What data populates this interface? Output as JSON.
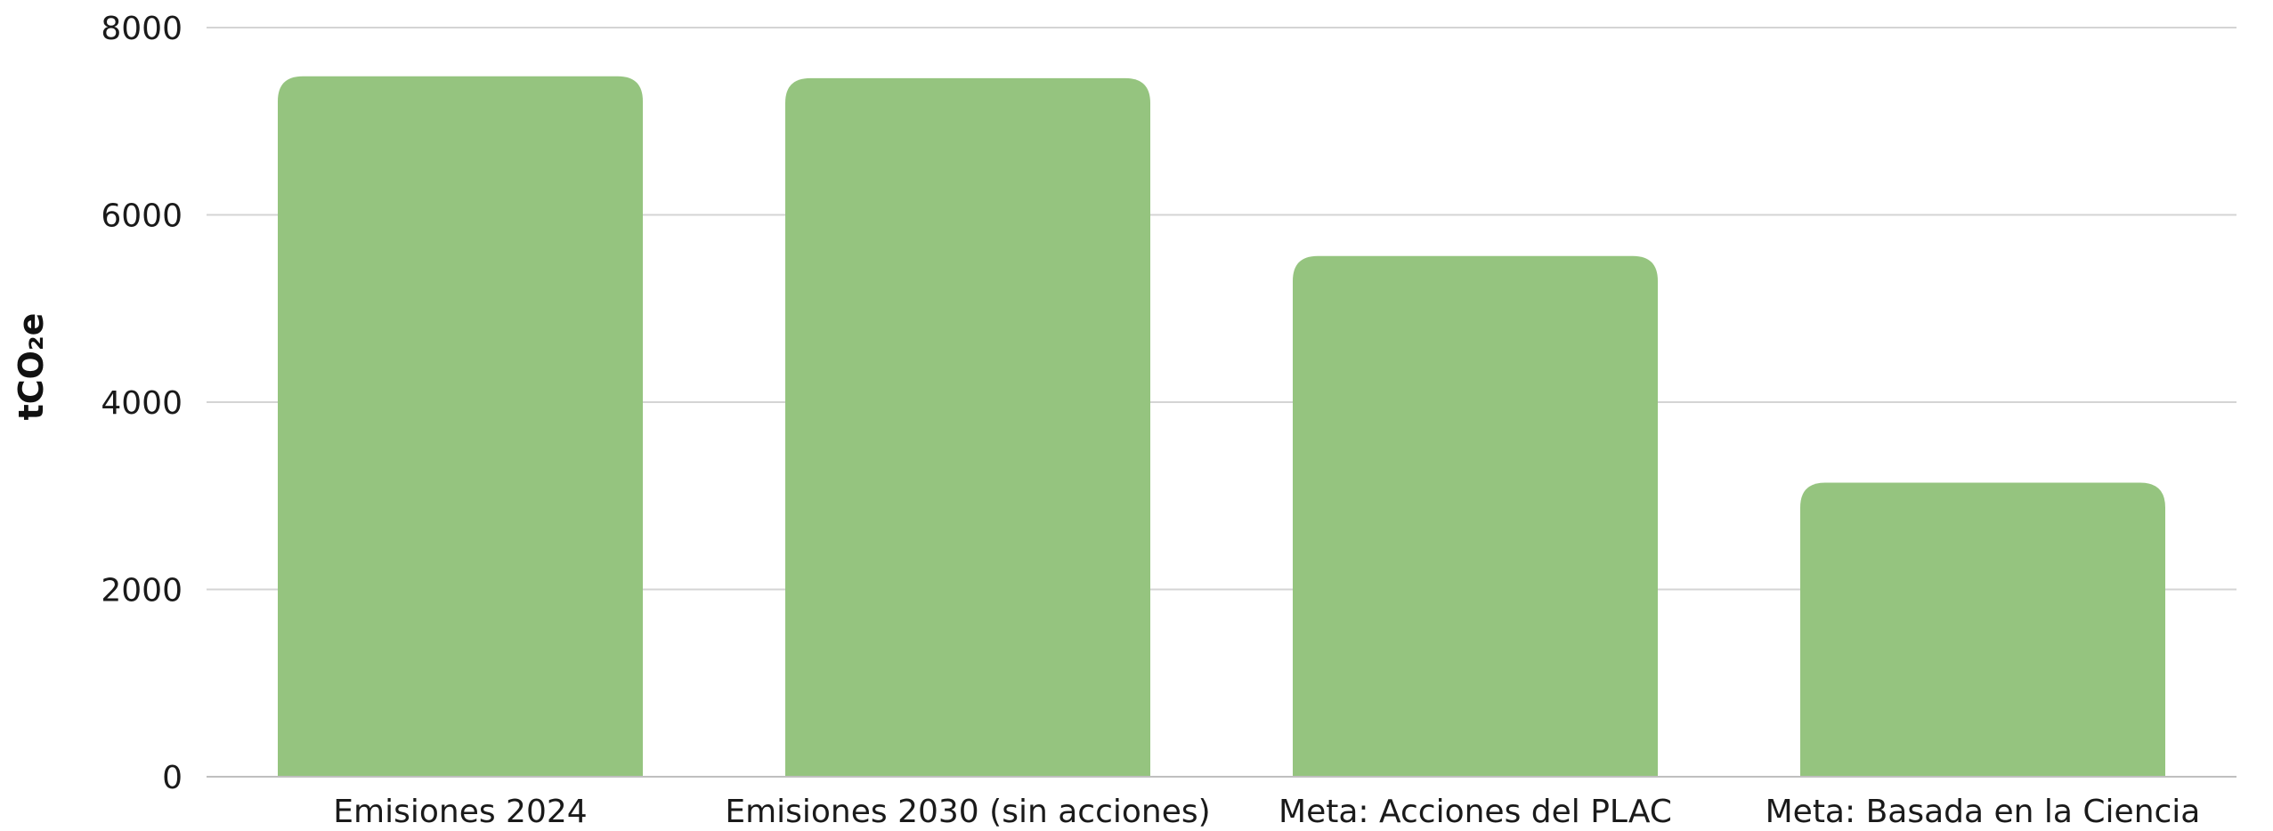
{
  "chart_data": {
    "type": "bar",
    "categories": [
      "Emisiones 2024",
      "Emisiones 2030 (sin acciones)",
      "Meta: Acciones del PLAC",
      "Meta: Basada en la Ciencia"
    ],
    "values": [
      7480,
      7460,
      5560,
      3140
    ],
    "title": "",
    "xlabel": "",
    "ylabel": "tCO₂e",
    "ylim": [
      0,
      8000
    ],
    "yticks": [
      0,
      2000,
      4000,
      6000,
      8000
    ],
    "grid": "horizontal",
    "legend": "none",
    "bar_color": "#95c47f"
  }
}
